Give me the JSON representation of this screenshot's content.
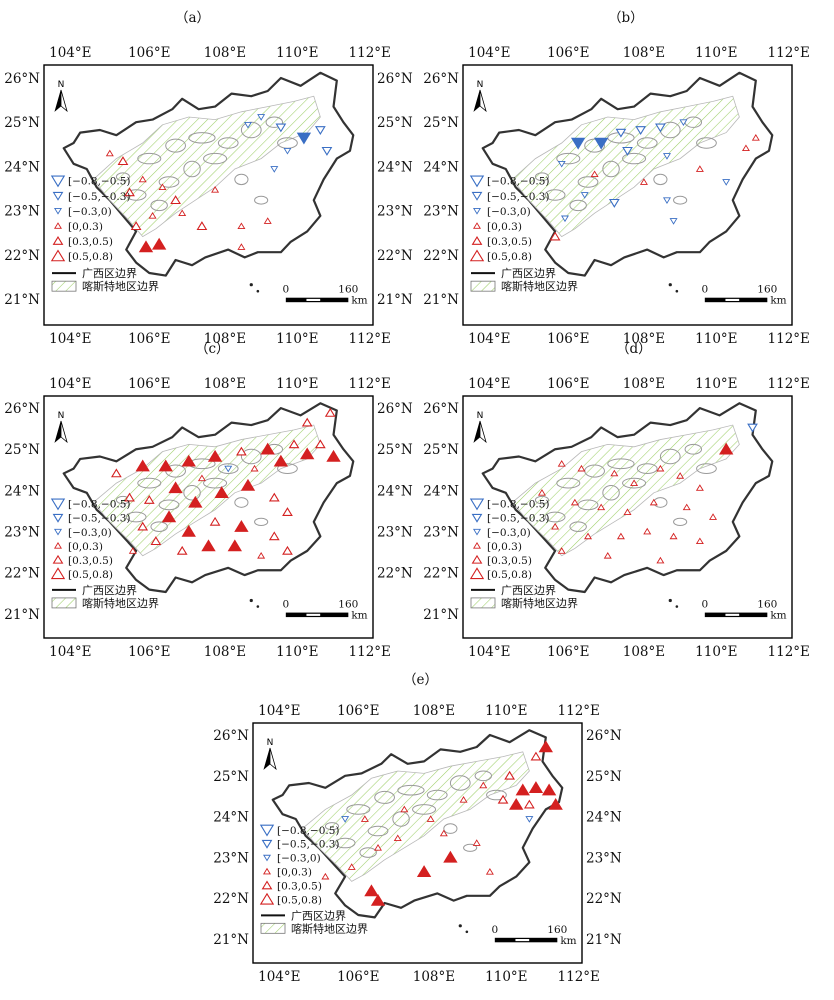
{
  "panels": [
    {
      "id": "a",
      "label": "（a）",
      "top_lon_labels": [
        "104°E",
        "106°E",
        "108°E",
        "110°E",
        "112°E"
      ],
      "bottom_lon_labels": [
        "104°E",
        "106°E",
        "108°E",
        "110°E",
        "112°E"
      ],
      "left_lat_labels": [
        "26°N",
        "25°N",
        "24°N",
        "23°N",
        "22°N",
        "21°N"
      ],
      "right_lat_labels": [
        "26°N",
        "25°N",
        "24°N",
        "23°N",
        "22°N",
        "21°N"
      ]
    },
    {
      "id": "b",
      "label": "（b）",
      "top_lon_labels": [
        "104°E",
        "106°E",
        "108°E",
        "110°E",
        "112°E"
      ],
      "bottom_lon_labels": [
        "104°E",
        "106°E",
        "108°E",
        "110°E",
        "112°E"
      ],
      "left_lat_labels": [
        "26°N",
        "25°N",
        "24°N",
        "23°N",
        "22°N",
        "21°N"
      ],
      "right_lat_labels": []
    },
    {
      "id": "c",
      "label": "（c）",
      "top_lon_labels": [
        "104°E",
        "106°E",
        "108°E",
        "110°E",
        "112°E"
      ],
      "bottom_lon_labels": [
        "104°E",
        "106°E",
        "108°E",
        "110°E",
        "112°E"
      ],
      "left_lat_labels": [
        "26°N",
        "25°N",
        "24°N",
        "23°N",
        "22°N",
        "21°N"
      ],
      "right_lat_labels": [
        "26°N",
        "25°N",
        "24°N",
        "23°N",
        "22°N"
      ]
    },
    {
      "id": "d",
      "label": "（d）",
      "top_lon_labels": [
        "104°E",
        "106°E",
        "108°E",
        "110°E",
        "112°E"
      ],
      "bottom_lon_labels": [
        "104°E",
        "106°E",
        "108°E",
        "110°E",
        "112°E"
      ],
      "left_lat_labels": [
        "26°N",
        "25°N",
        "24°N",
        "23°N",
        "22°N",
        "21°N"
      ],
      "right_lat_labels": []
    },
    {
      "id": "e",
      "label": "（e）",
      "top_lon_labels": [
        "104°E",
        "106°E",
        "108°E",
        "110°E",
        "112°E"
      ],
      "bottom_lon_labels": [
        "104°E",
        "106°E",
        "108°E",
        "110°E",
        "112°E"
      ],
      "left_lat_labels": [
        "26°N",
        "25°N",
        "24°N",
        "23°N",
        "22°N",
        "21°N"
      ],
      "right_lat_labels": [
        "26°N",
        "25°N",
        "24°N",
        "23°N",
        "22°N",
        "21°N"
      ]
    }
  ],
  "legend": {
    "classes": [
      {
        "label": "[−0.8,−0.5)",
        "kind": "down",
        "size": "large",
        "color": "#3a6fc4"
      },
      {
        "label": "[−0.5,−0.3)",
        "kind": "down",
        "size": "medium",
        "color": "#3a6fc4"
      },
      {
        "label": "[−0.3,0)",
        "kind": "down",
        "size": "small",
        "color": "#3a6fc4"
      },
      {
        "label": "[0,0.3)",
        "kind": "up",
        "size": "small",
        "color": "#d42020"
      },
      {
        "label": "[0.3,0.5)",
        "kind": "up",
        "size": "medium",
        "color": "#d42020"
      },
      {
        "label": "[0.5,0.8)",
        "kind": "up",
        "size": "large",
        "color": "#d42020"
      }
    ],
    "boundary_label": "广西区边界",
    "karst_label": "喀斯特地区边界"
  },
  "north_arrow": "N",
  "scale_bar": {
    "start": "0",
    "end": "160",
    "unit": "km"
  }
}
